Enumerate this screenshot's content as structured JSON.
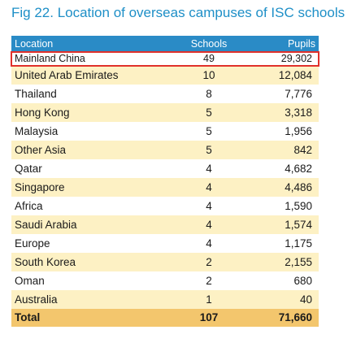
{
  "figure": {
    "title": "Fig 22. Location of overseas campuses of ISC schools"
  },
  "table": {
    "headers": {
      "location": "Location",
      "schools": "Schools",
      "pupils": "Pupils"
    },
    "rows": [
      {
        "location": "Mainland China",
        "schools": "49",
        "pupils": "29,302"
      },
      {
        "location": "United Arab Emirates",
        "schools": "10",
        "pupils": "12,084"
      },
      {
        "location": "Thailand",
        "schools": "8",
        "pupils": "7,776"
      },
      {
        "location": "Hong Kong",
        "schools": "5",
        "pupils": "3,318"
      },
      {
        "location": "Malaysia",
        "schools": "5",
        "pupils": "1,956"
      },
      {
        "location": "Other Asia",
        "schools": "5",
        "pupils": "842"
      },
      {
        "location": "Qatar",
        "schools": "4",
        "pupils": "4,682"
      },
      {
        "location": "Singapore",
        "schools": "4",
        "pupils": "4,486"
      },
      {
        "location": "Africa",
        "schools": "4",
        "pupils": "1,590"
      },
      {
        "location": "Saudi Arabia",
        "schools": "4",
        "pupils": "1,574"
      },
      {
        "location": "Europe",
        "schools": "4",
        "pupils": "1,175"
      },
      {
        "location": "South Korea",
        "schools": "2",
        "pupils": "2,155"
      },
      {
        "location": "Oman",
        "schools": "2",
        "pupils": "680"
      },
      {
        "location": "Australia",
        "schools": "1",
        "pupils": "40"
      }
    ],
    "total": {
      "location": "Total",
      "schools": "107",
      "pupils": "71,660"
    }
  },
  "colors": {
    "title": "#1e8fc7",
    "header_bg": "#2a8bc6",
    "stripe": "#fdf1c4",
    "total_bg": "#f3c66d",
    "highlight_border": "#e0312b"
  }
}
